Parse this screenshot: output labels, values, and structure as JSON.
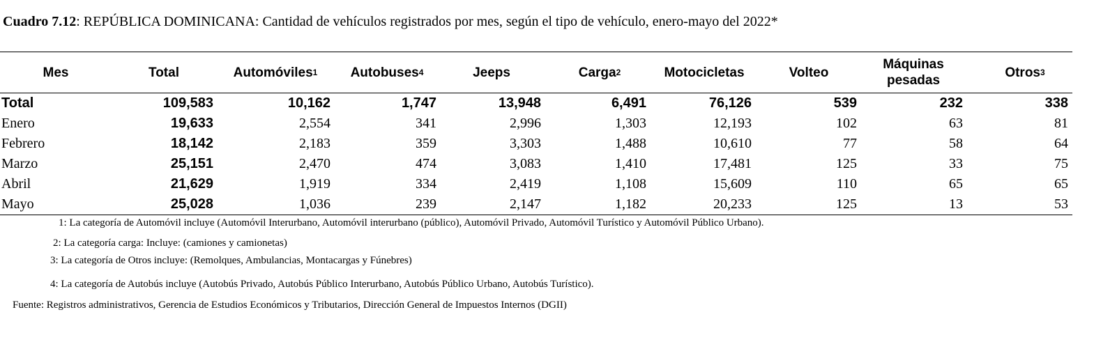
{
  "title": {
    "prefix": "Cuadro 7.12",
    "text": ": REPÚBLICA DOMINICANA: Cantidad de vehículos registrados por mes, según el tipo de vehículo, enero-mayo del 2022*"
  },
  "table": {
    "headers": [
      {
        "label": "Mes",
        "sup": ""
      },
      {
        "label": "Total",
        "sup": ""
      },
      {
        "label": "Automóviles",
        "sup": "1"
      },
      {
        "label": "Autobuses",
        "sup": "4"
      },
      {
        "label": "Jeeps",
        "sup": ""
      },
      {
        "label": "Carga",
        "sup": "2"
      },
      {
        "label": "Motocicletas",
        "sup": ""
      },
      {
        "label": "Volteo",
        "sup": ""
      },
      {
        "label": "Máquinas pesadas",
        "sup": ""
      },
      {
        "label": "Otros",
        "sup": "3"
      }
    ],
    "rows": [
      {
        "mes": "Total",
        "values": [
          "109,583",
          "10,162",
          "1,747",
          "13,948",
          "6,491",
          "76,126",
          "539",
          "232",
          "338"
        ]
      },
      {
        "mes": "Enero",
        "values": [
          "19,633",
          "2,554",
          "341",
          "2,996",
          "1,303",
          "12,193",
          "102",
          "63",
          "81"
        ]
      },
      {
        "mes": "Febrero",
        "values": [
          "18,142",
          "2,183",
          "359",
          "3,303",
          "1,488",
          "10,610",
          "77",
          "58",
          "64"
        ]
      },
      {
        "mes": "Marzo",
        "values": [
          "25,151",
          "2,470",
          "474",
          "3,083",
          "1,410",
          "17,481",
          "125",
          "33",
          "75"
        ]
      },
      {
        "mes": "Abril",
        "values": [
          "21,629",
          "1,919",
          "334",
          "2,419",
          "1,108",
          "15,609",
          "110",
          "65",
          "65"
        ]
      },
      {
        "mes": "Mayo",
        "values": [
          "25,028",
          "1,036",
          "239",
          "2,147",
          "1,182",
          "20,233",
          "125",
          "13",
          "53"
        ]
      }
    ]
  },
  "notes": [
    "1: La categoría de Automóvil incluye (Automóvil Interurbano, Automóvil interurbano (público), Automóvil Privado, Automóvil Turístico y Automóvil Público Urbano).",
    "2: La categoría carga: Incluye:  (camiones y camionetas)",
    "3: La categoría de Otros incluye: (Remolques, Ambulancias, Montacargas y Fúnebres)",
    "4: La categoría de Autobús incluye (Autobús Privado, Autobús Público Interurbano, Autobús Público Urbano, Autobús Turístico)."
  ],
  "source": "Fuente: Registros administrativos, Gerencia de Estudios Económicos y Tributarios, Dirección General de Impuestos Internos (DGII)"
}
